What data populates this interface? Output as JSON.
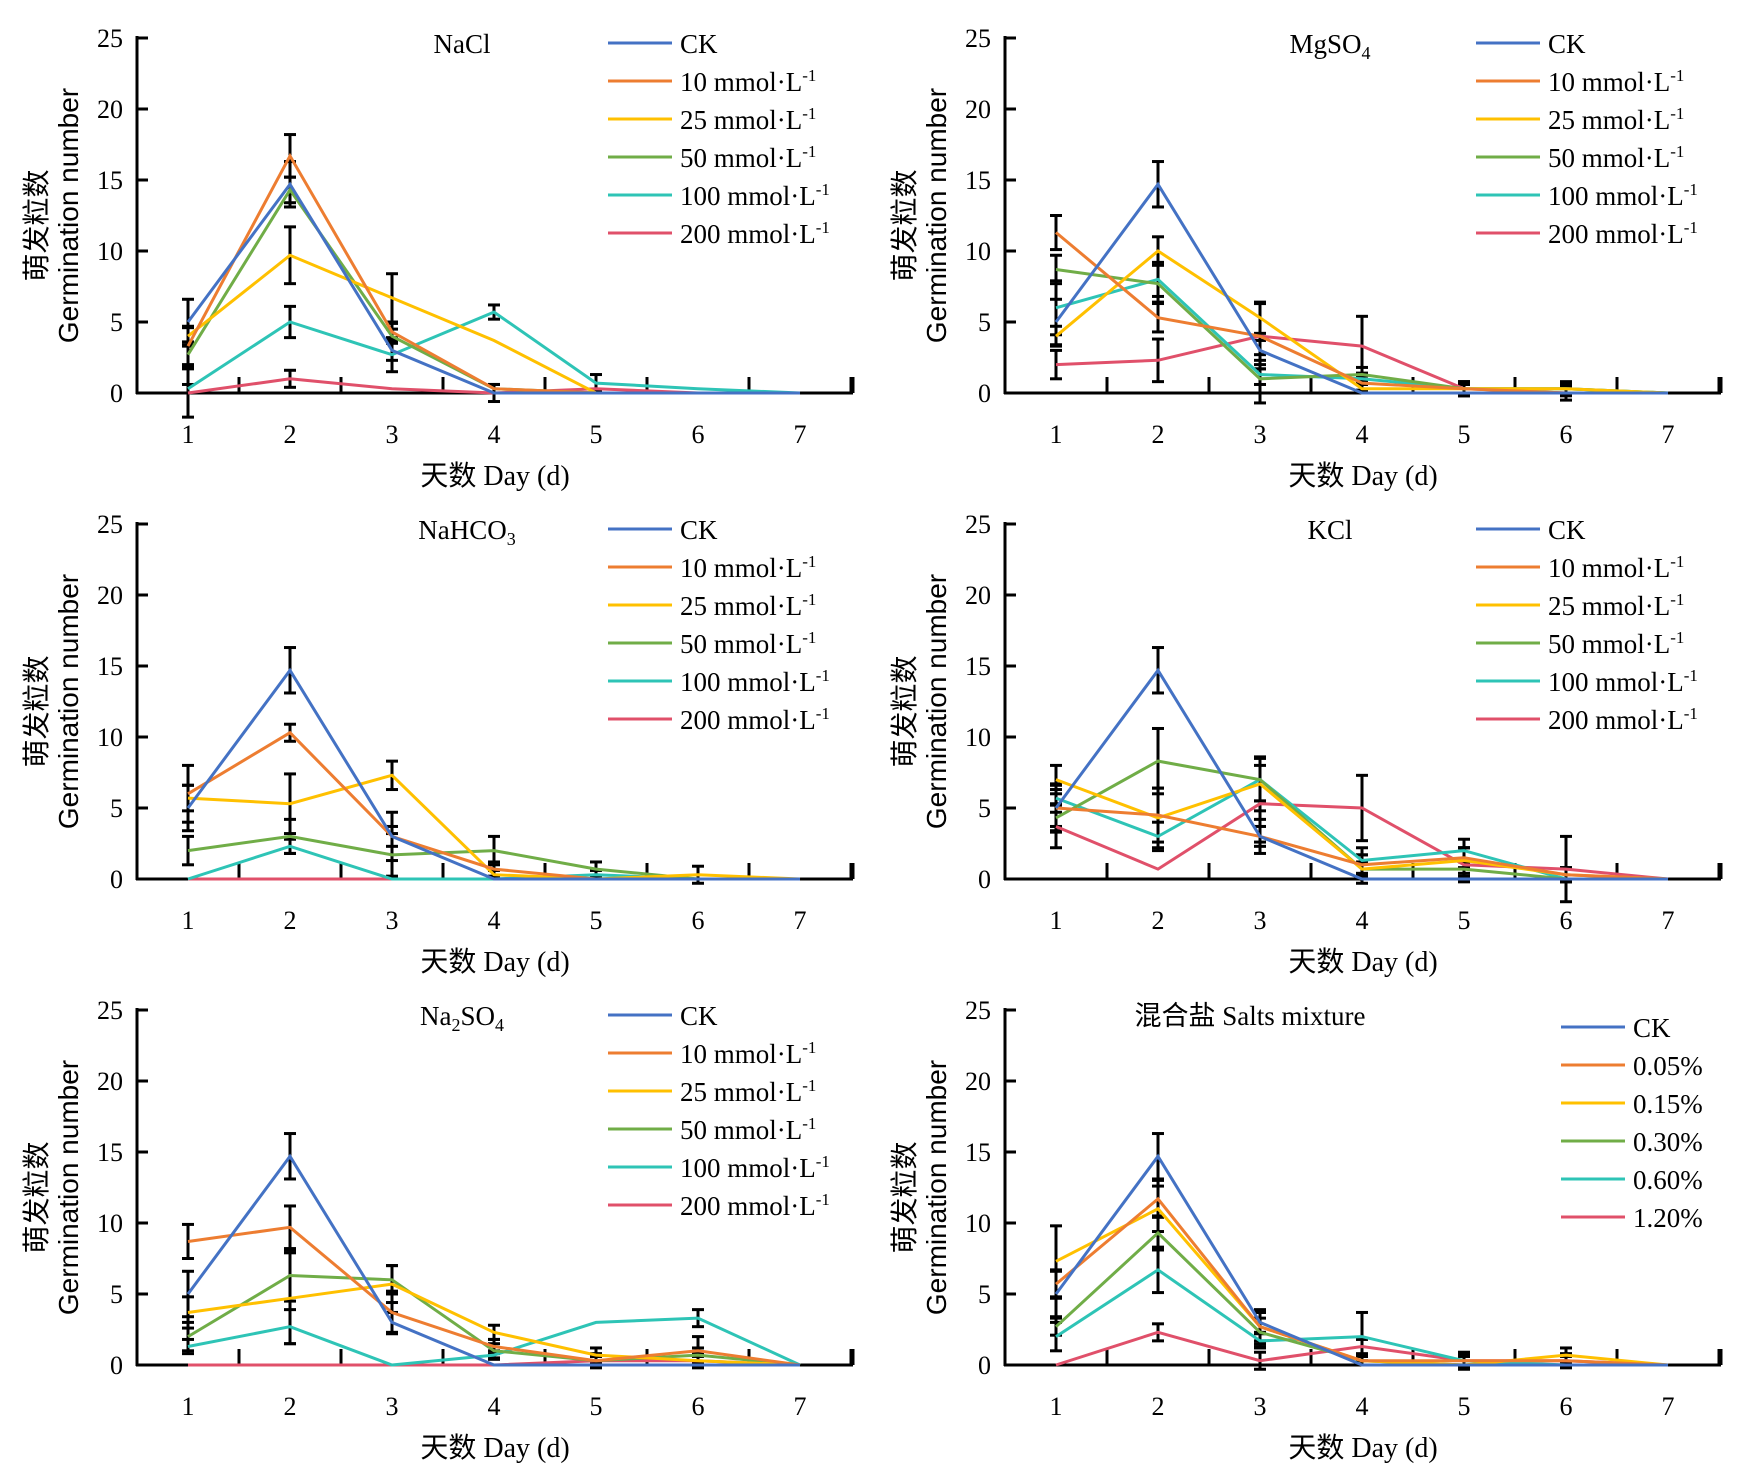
{
  "figure": {
    "ylabel_cn": "萌发粒数",
    "ylabel_en": "Germination number",
    "xlabel": "天数 Day (d)"
  },
  "chart_data": [
    {
      "type": "line",
      "title": "NaCl",
      "title_parts": [
        {
          "text": "NaCl",
          "sub": ""
        }
      ],
      "xlabel": "天数 Day (d)",
      "ylabel": "萌发粒数 Germination number",
      "x": [
        1,
        2,
        3,
        4,
        5,
        6,
        7
      ],
      "ylim": [
        0,
        25
      ],
      "yticks": [
        0,
        5,
        10,
        15,
        20,
        25
      ],
      "xticks": [
        1,
        2,
        3,
        4,
        5,
        6,
        7
      ],
      "grid": false,
      "legend_position": "top-right",
      "series": [
        {
          "name": "CK",
          "color": "#4472C4",
          "values": [
            5.0,
            14.7,
            3.0,
            0.0,
            0.0,
            0.0,
            0.0
          ],
          "errors": [
            1.6,
            1.6,
            0.7,
            0.0,
            0.0,
            0.0,
            0.0
          ]
        },
        {
          "name": "10 mmol·L-1",
          "color": "#ED7D31",
          "values": [
            3.3,
            16.7,
            4.3,
            0.3,
            0.0,
            0.0,
            0.0
          ],
          "errors": [
            1.3,
            1.5,
            0.6,
            0.3,
            0.0,
            0.0,
            0.0
          ]
        },
        {
          "name": "25 mmol·L-1",
          "color": "#FFC000",
          "values": [
            4.0,
            9.7,
            6.7,
            3.7,
            0.0,
            0.0,
            0.0
          ],
          "errors": [
            0.7,
            2.0,
            1.7,
            0.0,
            0.0,
            0.0,
            0.0
          ]
        },
        {
          "name": "50 mmol·L-1",
          "color": "#70AD47",
          "values": [
            2.7,
            14.3,
            4.0,
            0.3,
            0.0,
            0.0,
            0.0
          ],
          "errors": [
            0.9,
            0.9,
            0.5,
            0.3,
            0.0,
            0.0,
            0.0
          ]
        },
        {
          "name": "100 mmol·L-1",
          "color": "#2EC4B6",
          "values": [
            0.3,
            5.0,
            2.7,
            5.7,
            0.7,
            0.3,
            0.0
          ],
          "errors": [
            0.3,
            1.1,
            1.2,
            0.5,
            0.6,
            0.0,
            0.0
          ]
        },
        {
          "name": "200 mmol·L-1",
          "color": "#E0506A",
          "values": [
            0.0,
            1.0,
            0.3,
            0.0,
            0.3,
            0.0,
            0.0
          ],
          "errors": [
            1.7,
            0.6,
            0.0,
            0.6,
            0.0,
            0.0,
            0.0
          ]
        }
      ]
    },
    {
      "type": "line",
      "title": "MgSO4",
      "title_parts": [
        {
          "text": "MgSO",
          "sub": "4"
        }
      ],
      "xlabel": "天数 Day (d)",
      "ylabel": "萌发粒数 Germination number",
      "x": [
        1,
        2,
        3,
        4,
        5,
        6,
        7
      ],
      "ylim": [
        0,
        25
      ],
      "yticks": [
        0,
        5,
        10,
        15,
        20,
        25
      ],
      "xticks": [
        1,
        2,
        3,
        4,
        5,
        6,
        7
      ],
      "grid": false,
      "legend_position": "top-right",
      "series": [
        {
          "name": "CK",
          "color": "#4472C4",
          "values": [
            5.0,
            14.7,
            3.0,
            0.0,
            0.0,
            0.0,
            0.0
          ],
          "errors": [
            1.6,
            1.6,
            0.7,
            0.0,
            0.0,
            0.0,
            0.0
          ]
        },
        {
          "name": "10 mmol·L-1",
          "color": "#ED7D31",
          "values": [
            11.3,
            5.3,
            4.0,
            0.7,
            0.3,
            0.0,
            0.0
          ],
          "errors": [
            1.2,
            1.0,
            2.3,
            0.5,
            0.5,
            0.0,
            0.0
          ]
        },
        {
          "name": "25 mmol·L-1",
          "color": "#FFC000",
          "values": [
            4.0,
            10.0,
            5.3,
            0.3,
            0.3,
            0.3,
            0.0
          ],
          "errors": [
            0.7,
            1.0,
            1.1,
            0.3,
            0.3,
            0.5,
            0.0
          ]
        },
        {
          "name": "50 mmol·L-1",
          "color": "#70AD47",
          "values": [
            8.7,
            7.7,
            1.0,
            1.3,
            0.3,
            0.3,
            0.0
          ],
          "errors": [
            1.0,
            1.3,
            1.7,
            0.5,
            0.3,
            0.3,
            0.0
          ]
        },
        {
          "name": "100 mmol·L-1",
          "color": "#2EC4B6",
          "values": [
            6.0,
            8.0,
            1.3,
            1.0,
            0.3,
            0.3,
            0.0
          ],
          "errors": [
            1.9,
            1.2,
            0.7,
            0.4,
            0.3,
            0.3,
            0.0
          ]
        },
        {
          "name": "200 mmol·L-1",
          "color": "#E0506A",
          "values": [
            2.0,
            2.3,
            4.0,
            3.3,
            0.3,
            0.0,
            0.0
          ],
          "errors": [
            1.0,
            1.5,
            2.3,
            2.1,
            0.5,
            0.5,
            0.0
          ]
        }
      ]
    },
    {
      "type": "line",
      "title": "NaHCO3",
      "title_parts": [
        {
          "text": "NaHCO",
          "sub": "3"
        }
      ],
      "xlabel": "天数 Day (d)",
      "ylabel": "萌发粒数 Germination number",
      "x": [
        1,
        2,
        3,
        4,
        5,
        6,
        7
      ],
      "ylim": [
        0,
        25
      ],
      "yticks": [
        0,
        5,
        10,
        15,
        20,
        25
      ],
      "xticks": [
        1,
        2,
        3,
        4,
        5,
        6,
        7
      ],
      "grid": false,
      "legend_position": "top-right",
      "series": [
        {
          "name": "CK",
          "color": "#4472C4",
          "values": [
            5.0,
            14.7,
            3.0,
            0.0,
            0.0,
            0.0,
            0.0
          ],
          "errors": [
            1.6,
            1.6,
            0.7,
            0.0,
            0.0,
            0.0,
            0.0
          ]
        },
        {
          "name": "10 mmol·L-1",
          "color": "#ED7D31",
          "values": [
            6.0,
            10.3,
            3.0,
            0.7,
            0.0,
            0.0,
            0.0
          ],
          "errors": [
            2.0,
            0.6,
            1.7,
            0.5,
            0.0,
            0.0,
            0.0
          ]
        },
        {
          "name": "25 mmol·L-1",
          "color": "#FFC000",
          "values": [
            5.7,
            5.3,
            7.3,
            0.3,
            0.0,
            0.3,
            0.0
          ],
          "errors": [
            0.9,
            2.1,
            1.0,
            0.3,
            0.0,
            0.6,
            0.0
          ]
        },
        {
          "name": "50 mmol·L-1",
          "color": "#70AD47",
          "values": [
            2.0,
            3.0,
            1.7,
            2.0,
            0.7,
            0.0,
            0.0
          ],
          "errors": [
            1.0,
            1.2,
            1.5,
            1.0,
            0.5,
            0.0,
            0.0
          ]
        },
        {
          "name": "100 mmol·L-1",
          "color": "#2EC4B6",
          "values": [
            0.0,
            2.3,
            0.0,
            0.0,
            0.3,
            0.0,
            0.0
          ],
          "errors": [
            0.0,
            0.5,
            0.0,
            0.0,
            0.3,
            0.0,
            0.0
          ]
        },
        {
          "name": "200 mmol·L-1",
          "color": "#E0506A",
          "values": [
            0.0,
            0.0,
            0.0,
            0.0,
            0.0,
            0.0,
            0.0
          ],
          "errors": [
            0.0,
            0.0,
            0.0,
            0.0,
            0.0,
            0.0,
            0.0
          ]
        }
      ]
    },
    {
      "type": "line",
      "title": "KCl",
      "title_parts": [
        {
          "text": "KCl",
          "sub": ""
        }
      ],
      "xlabel": "天数 Day (d)",
      "ylabel": "萌发粒数 Germination number",
      "x": [
        1,
        2,
        3,
        4,
        5,
        6,
        7
      ],
      "ylim": [
        0,
        25
      ],
      "yticks": [
        0,
        5,
        10,
        15,
        20,
        25
      ],
      "xticks": [
        1,
        2,
        3,
        4,
        5,
        6,
        7
      ],
      "grid": false,
      "legend_position": "top-right",
      "series": [
        {
          "name": "CK",
          "color": "#4472C4",
          "values": [
            5.0,
            14.7,
            3.0,
            0.0,
            0.0,
            0.0,
            0.0
          ],
          "errors": [
            1.6,
            1.6,
            0.7,
            0.0,
            0.0,
            0.0,
            0.0
          ]
        },
        {
          "name": "10 mmol·L-1",
          "color": "#ED7D31",
          "values": [
            5.0,
            4.5,
            3.0,
            1.0,
            1.5,
            0.3,
            0.0
          ],
          "errors": [
            1.3,
            1.9,
            1.2,
            0.7,
            0.7,
            0.5,
            0.0
          ]
        },
        {
          "name": "25 mmol·L-1",
          "color": "#FFC000",
          "values": [
            7.0,
            4.3,
            6.7,
            0.7,
            1.3,
            0.3,
            0.0
          ],
          "errors": [
            1.0,
            2.1,
            1.9,
            0.5,
            0.9,
            0.5,
            0.0
          ]
        },
        {
          "name": "50 mmol·L-1",
          "color": "#70AD47",
          "values": [
            4.3,
            8.3,
            7.0,
            0.7,
            0.7,
            0.0,
            0.0
          ],
          "errors": [
            1.0,
            2.3,
            1.5,
            1.0,
            0.5,
            0.0,
            0.0
          ]
        },
        {
          "name": "100 mmol·L-1",
          "color": "#2EC4B6",
          "values": [
            5.7,
            3.0,
            7.0,
            1.3,
            2.0,
            0.0,
            0.0
          ],
          "errors": [
            1.0,
            1.0,
            1.5,
            0.9,
            0.8,
            0.0,
            0.0
          ]
        },
        {
          "name": "200 mmol·L-1",
          "color": "#E0506A",
          "values": [
            3.7,
            0.7,
            5.3,
            5.0,
            1.0,
            0.7,
            0.0
          ],
          "errors": [
            1.5,
            0.0,
            2.7,
            2.3,
            1.2,
            2.3,
            0.0
          ]
        }
      ]
    },
    {
      "type": "line",
      "title": "Na2SO4",
      "title_parts": [
        {
          "text": "Na",
          "sub": "2"
        },
        {
          "text": "SO",
          "sub": "4"
        }
      ],
      "xlabel": "天数 Day (d)",
      "ylabel": "萌发粒数 Germination number",
      "x": [
        1,
        2,
        3,
        4,
        5,
        6,
        7
      ],
      "ylim": [
        0,
        25
      ],
      "yticks": [
        0,
        5,
        10,
        15,
        20,
        25
      ],
      "xticks": [
        1,
        2,
        3,
        4,
        5,
        6,
        7
      ],
      "grid": false,
      "legend_position": "top-right",
      "series": [
        {
          "name": "CK",
          "color": "#4472C4",
          "values": [
            5.0,
            14.7,
            3.0,
            0.0,
            0.0,
            0.0,
            0.0
          ],
          "errors": [
            1.6,
            1.6,
            0.7,
            0.0,
            0.0,
            0.0,
            0.0
          ]
        },
        {
          "name": "10 mmol·L-1",
          "color": "#ED7D31",
          "values": [
            8.7,
            9.7,
            3.7,
            1.3,
            0.3,
            1.0,
            0.0
          ],
          "errors": [
            1.2,
            1.5,
            1.5,
            0.5,
            0.5,
            1.0,
            0.0
          ]
        },
        {
          "name": "25 mmol·L-1",
          "color": "#FFC000",
          "values": [
            3.7,
            4.7,
            5.7,
            2.3,
            0.7,
            0.3,
            0.0
          ],
          "errors": [
            1.1,
            3.2,
            1.3,
            0.5,
            0.5,
            0.5,
            0.0
          ]
        },
        {
          "name": "50 mmol·L-1",
          "color": "#70AD47",
          "values": [
            2.0,
            6.3,
            6.0,
            1.0,
            0.3,
            0.7,
            0.0
          ],
          "errors": [
            1.0,
            1.8,
            1.0,
            0.5,
            0.3,
            0.5,
            0.0
          ]
        },
        {
          "name": "100 mmol·L-1",
          "color": "#2EC4B6",
          "values": [
            1.3,
            2.7,
            0.0,
            0.7,
            3.0,
            3.3,
            0.0
          ],
          "errors": [
            0.5,
            1.2,
            0.0,
            0.3,
            0.0,
            0.6,
            0.0
          ]
        },
        {
          "name": "200 mmol·L-1",
          "color": "#E0506A",
          "values": [
            0.0,
            0.0,
            0.0,
            0.0,
            0.3,
            0.3,
            0.0
          ],
          "errors": [
            0.0,
            0.0,
            0.0,
            0.0,
            0.3,
            0.3,
            0.0
          ]
        }
      ]
    },
    {
      "type": "line",
      "title": "混合盐 Salts mixture",
      "title_parts": [
        {
          "text": "混合盐 Salts mixture",
          "sub": ""
        }
      ],
      "xlabel": "天数 Day (d)",
      "ylabel": "萌发粒数 Germination number",
      "x": [
        1,
        2,
        3,
        4,
        5,
        6,
        7
      ],
      "ylim": [
        0,
        25
      ],
      "yticks": [
        0,
        5,
        10,
        15,
        20,
        25
      ],
      "xticks": [
        1,
        2,
        3,
        4,
        5,
        6,
        7
      ],
      "grid": false,
      "legend_position": "top-right",
      "series": [
        {
          "name": "CK",
          "color": "#4472C4",
          "values": [
            5.0,
            14.7,
            3.0,
            0.0,
            0.0,
            0.0,
            0.0
          ],
          "errors": [
            1.6,
            1.6,
            0.7,
            0.0,
            0.0,
            0.0,
            0.0
          ]
        },
        {
          "name": "0.05%",
          "color": "#ED7D31",
          "values": [
            5.7,
            11.7,
            2.7,
            0.3,
            0.3,
            0.3,
            0.0
          ],
          "errors": [
            1.0,
            1.3,
            1.0,
            0.3,
            0.3,
            0.3,
            0.0
          ]
        },
        {
          "name": "0.15%",
          "color": "#FFC000",
          "values": [
            7.3,
            11.0,
            2.7,
            0.3,
            0.0,
            0.7,
            0.0
          ],
          "errors": [
            2.5,
            1.6,
            1.2,
            0.3,
            0.0,
            0.5,
            0.0
          ]
        },
        {
          "name": "0.30%",
          "color": "#70AD47",
          "values": [
            2.7,
            9.3,
            2.3,
            0.3,
            0.0,
            0.0,
            0.0
          ],
          "errors": [
            0.6,
            1.2,
            1.0,
            0.3,
            0.0,
            0.0,
            0.0
          ]
        },
        {
          "name": "0.60%",
          "color": "#2EC4B6",
          "values": [
            2.0,
            6.7,
            1.7,
            2.0,
            0.3,
            0.0,
            0.0
          ],
          "errors": [
            1.0,
            1.6,
            0.5,
            1.7,
            0.6,
            0.0,
            0.0
          ]
        },
        {
          "name": "1.20%",
          "color": "#E0506A",
          "values": [
            0.0,
            2.3,
            0.3,
            1.3,
            0.3,
            0.3,
            0.0
          ],
          "errors": [
            0.0,
            0.6,
            0.6,
            0.5,
            0.5,
            0.5,
            0.0
          ]
        }
      ]
    }
  ]
}
